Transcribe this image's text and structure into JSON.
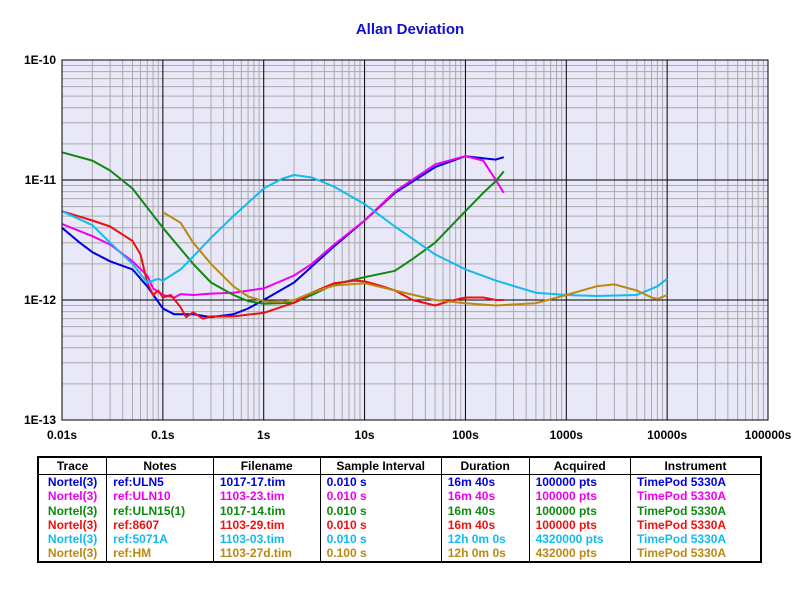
{
  "chart_data": {
    "type": "line",
    "title": "Allan Deviation",
    "x_scale": "log",
    "y_scale": "log",
    "xlim": [
      0.01,
      100000
    ],
    "ylim": [
      1e-13,
      1e-10
    ],
    "grid": true,
    "x_tick_labels": [
      "0.01s",
      "0.1s",
      "1s",
      "10s",
      "100s",
      "1000s",
      "10000s",
      "100000s"
    ],
    "y_tick_labels": [
      "1E-10",
      "1E-11",
      "1E-12",
      "1E-13"
    ],
    "series": [
      {
        "name": "Nortel(3)",
        "color": "#0000dd",
        "x": [
          0.01,
          0.015,
          0.02,
          0.03,
          0.05,
          0.07,
          0.1,
          0.13,
          0.2,
          0.3,
          0.5,
          0.7,
          1,
          2,
          3,
          5,
          10,
          20,
          50,
          100,
          150,
          200,
          240
        ],
        "y": [
          4e-12,
          3e-12,
          2.5e-12,
          2.1e-12,
          1.8e-12,
          1.3e-12,
          8.5e-13,
          7.6e-13,
          7.6e-13,
          7.2e-13,
          7.6e-13,
          8.5e-13,
          1e-12,
          1.4e-12,
          1.9e-12,
          2.8e-12,
          4.6e-12,
          7.8e-12,
          1.28e-11,
          1.58e-11,
          1.52e-11,
          1.48e-11,
          1.55e-11
        ]
      },
      {
        "name": "Nortel(3)",
        "color": "#ee00ee",
        "x": [
          0.01,
          0.02,
          0.03,
          0.05,
          0.07,
          0.08,
          0.1,
          0.13,
          0.15,
          0.2,
          0.3,
          0.5,
          1,
          2,
          3,
          5,
          10,
          20,
          50,
          100,
          150,
          200,
          240
        ],
        "y": [
          4.3e-12,
          3.4e-12,
          2.9e-12,
          2.1e-12,
          1.6e-12,
          1.25e-12,
          1.1e-12,
          1.05e-12,
          1.12e-12,
          1.1e-12,
          1.13e-12,
          1.15e-12,
          1.25e-12,
          1.6e-12,
          2e-12,
          2.9e-12,
          4.6e-12,
          8e-12,
          1.35e-11,
          1.58e-11,
          1.45e-11,
          1e-11,
          7.8e-12
        ]
      },
      {
        "name": "Nortel(3)",
        "color": "#118811",
        "x": [
          0.01,
          0.02,
          0.03,
          0.05,
          0.1,
          0.2,
          0.3,
          0.5,
          0.7,
          1,
          2,
          3,
          5,
          10,
          20,
          30,
          50,
          100,
          150,
          200,
          240
        ],
        "y": [
          1.7e-11,
          1.45e-11,
          1.2e-11,
          8.5e-12,
          4e-12,
          2e-12,
          1.4e-12,
          1.1e-12,
          9.8e-13,
          9.3e-13,
          9.5e-13,
          1.1e-12,
          1.35e-12,
          1.55e-12,
          1.75e-12,
          2.2e-12,
          3e-12,
          5.5e-12,
          7.8e-12,
          9.8e-12,
          1.18e-11
        ]
      },
      {
        "name": "Nortel(3)",
        "color": "#ee1111",
        "x": [
          0.01,
          0.02,
          0.03,
          0.05,
          0.06,
          0.07,
          0.08,
          0.09,
          0.1,
          0.12,
          0.15,
          0.17,
          0.2,
          0.25,
          0.3,
          0.5,
          1,
          2,
          3,
          5,
          8,
          10,
          15,
          20,
          30,
          50,
          70,
          100,
          150,
          200,
          240
        ],
        "y": [
          5.5e-12,
          4.6e-12,
          4.1e-12,
          3.1e-12,
          2.4e-12,
          1.4e-12,
          1.1e-12,
          1.2e-12,
          1.05e-12,
          1.1e-12,
          8.7e-13,
          7.2e-13,
          7.9e-13,
          7e-13,
          7.3e-13,
          7.3e-13,
          7.8e-13,
          9.5e-13,
          1.15e-12,
          1.38e-12,
          1.45e-12,
          1.43e-12,
          1.3e-12,
          1.2e-12,
          1e-12,
          9e-13,
          9.8e-13,
          1.05e-12,
          1.05e-12,
          1e-12,
          1e-12
        ]
      },
      {
        "name": "Nortel(3)",
        "color": "#11bbee",
        "x": [
          0.01,
          0.02,
          0.03,
          0.05,
          0.07,
          0.09,
          0.1,
          0.15,
          0.2,
          0.3,
          0.5,
          1,
          1.5,
          2,
          3,
          5,
          10,
          20,
          50,
          100,
          200,
          500,
          1000,
          2000,
          5000,
          8000,
          10000
        ],
        "y": [
          5.5e-12,
          4.2e-12,
          3e-12,
          2e-12,
          1.4e-12,
          1.5e-12,
          1.45e-12,
          1.8e-12,
          2.3e-12,
          3.3e-12,
          5e-12,
          8.5e-12,
          1.02e-11,
          1.1e-11,
          1.05e-11,
          8.8e-12,
          6.3e-12,
          4.1e-12,
          2.4e-12,
          1.8e-12,
          1.45e-12,
          1.15e-12,
          1.1e-12,
          1.08e-12,
          1.1e-12,
          1.3e-12,
          1.5e-12
        ]
      },
      {
        "name": "Nortel(3)",
        "color": "#bb8811",
        "x": [
          0.1,
          0.15,
          0.2,
          0.3,
          0.5,
          0.7,
          1,
          1.5,
          2,
          3,
          5,
          10,
          20,
          50,
          100,
          200,
          500,
          1000,
          2000,
          3000,
          5000,
          7000,
          8000,
          10000
        ],
        "y": [
          5.4e-12,
          4.4e-12,
          3e-12,
          2e-12,
          1.3e-12,
          1.07e-12,
          9.8e-13,
          9.6e-13,
          1e-12,
          1.15e-12,
          1.32e-12,
          1.38e-12,
          1.2e-12,
          1e-12,
          9.4e-13,
          9e-13,
          9.4e-13,
          1.1e-12,
          1.3e-12,
          1.35e-12,
          1.2e-12,
          1.05e-12,
          1.02e-12,
          1.1e-12
        ]
      }
    ]
  },
  "legend_table": {
    "headers": [
      "Trace",
      "Notes",
      "Filename",
      "Sample Interval",
      "Duration",
      "Acquired",
      "Instrument"
    ],
    "rows": [
      {
        "color": "#0000dd",
        "cells": [
          "Nortel(3)",
          "ref:ULN5",
          "1017-17.tim",
          "0.010 s",
          "16m 40s",
          "100000 pts",
          "TimePod 5330A"
        ]
      },
      {
        "color": "#ee00ee",
        "cells": [
          "Nortel(3)",
          "ref:ULN10",
          "1103-23.tim",
          "0.010 s",
          "16m 40s",
          "100000 pts",
          "TimePod 5330A"
        ]
      },
      {
        "color": "#118811",
        "cells": [
          "Nortel(3)",
          "ref:ULN15(1)",
          "1017-14.tim",
          "0.010 s",
          "16m 40s",
          "100000 pts",
          "TimePod 5330A"
        ]
      },
      {
        "color": "#ee1111",
        "cells": [
          "Nortel(3)",
          "ref:8607",
          "1103-29.tim",
          "0.010 s",
          "16m 40s",
          "100000 pts",
          "TimePod 5330A"
        ]
      },
      {
        "color": "#11bbee",
        "cells": [
          "Nortel(3)",
          "ref:5071A",
          "1103-03.tim",
          "0.010 s",
          "12h 0m 0s",
          "4320000 pts",
          "TimePod 5330A"
        ]
      },
      {
        "color": "#bb8811",
        "cells": [
          "Nortel(3)",
          "ref:HM",
          "1103-27d.tim",
          "0.100 s",
          "12h 0m 0s",
          "432000 pts",
          "TimePod 5330A"
        ]
      }
    ]
  }
}
